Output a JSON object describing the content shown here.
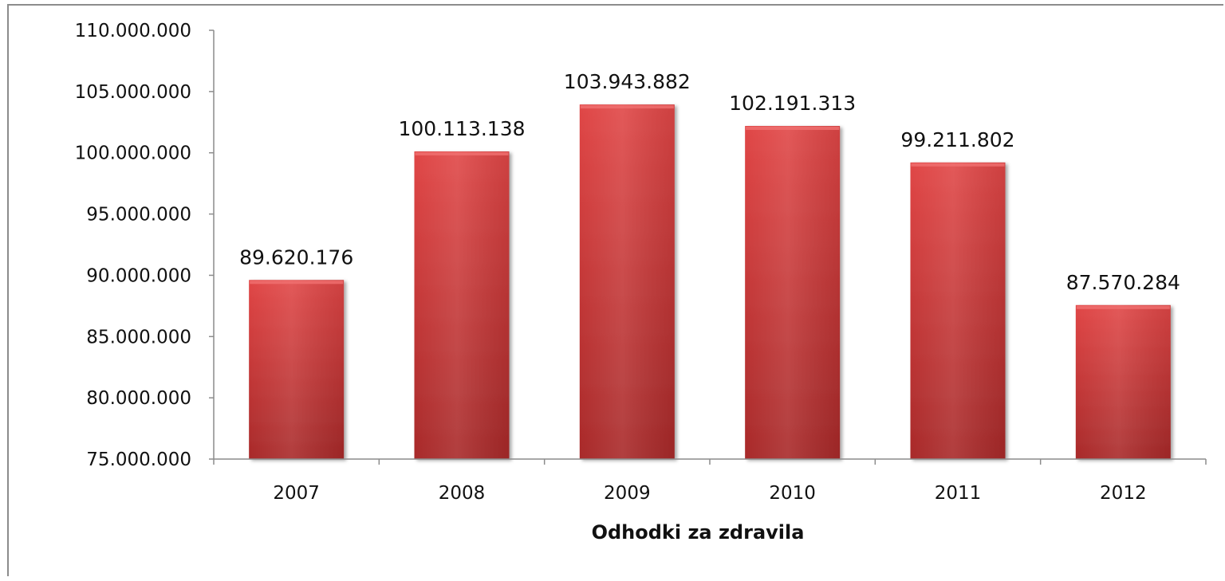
{
  "chart_data": {
    "type": "bar",
    "title": "",
    "xlabel": "Odhodki za zdravila",
    "ylabel": "",
    "categories": [
      "2007",
      "2008",
      "2009",
      "2010",
      "2011",
      "2012"
    ],
    "values": [
      89620176,
      100113138,
      103943882,
      102191313,
      99211802,
      87570284
    ],
    "data_labels": [
      "89.620.176",
      "100.113.138",
      "103.943.882",
      "102.191.313",
      "99.211.802",
      "87.570.284"
    ],
    "ylim": [
      75000000,
      110000000
    ],
    "yticks": [
      75000000,
      80000000,
      85000000,
      90000000,
      95000000,
      100000000,
      105000000,
      110000000
    ],
    "ytick_labels": [
      "75.000.000",
      "80.000.000",
      "85.000.000",
      "90.000.000",
      "95.000.000",
      "100.000.000",
      "105.000.000",
      "110.000.000"
    ],
    "grid": false,
    "legend": "none",
    "bar_color": "#d63a3a",
    "bar_color_dark": "#a82a2a"
  }
}
